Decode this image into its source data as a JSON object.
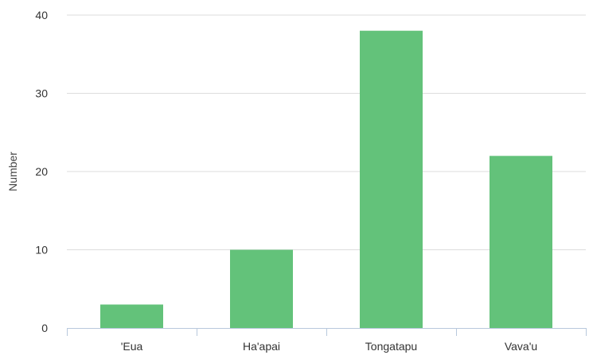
{
  "chart_data": {
    "type": "bar",
    "title": "",
    "xlabel": "",
    "ylabel": "Number",
    "categories": [
      "'Eua",
      "Ha'apai",
      "Tongatapu",
      "Vava'u"
    ],
    "values": [
      3,
      10,
      38,
      22
    ],
    "ylim": [
      0,
      40
    ],
    "yticks": [
      0,
      10,
      20,
      30,
      40
    ],
    "grid": true,
    "legend": "none",
    "colors": {
      "bar": "#63c27a",
      "grid": "#dddddd",
      "axis": "#b8c8dc"
    }
  }
}
